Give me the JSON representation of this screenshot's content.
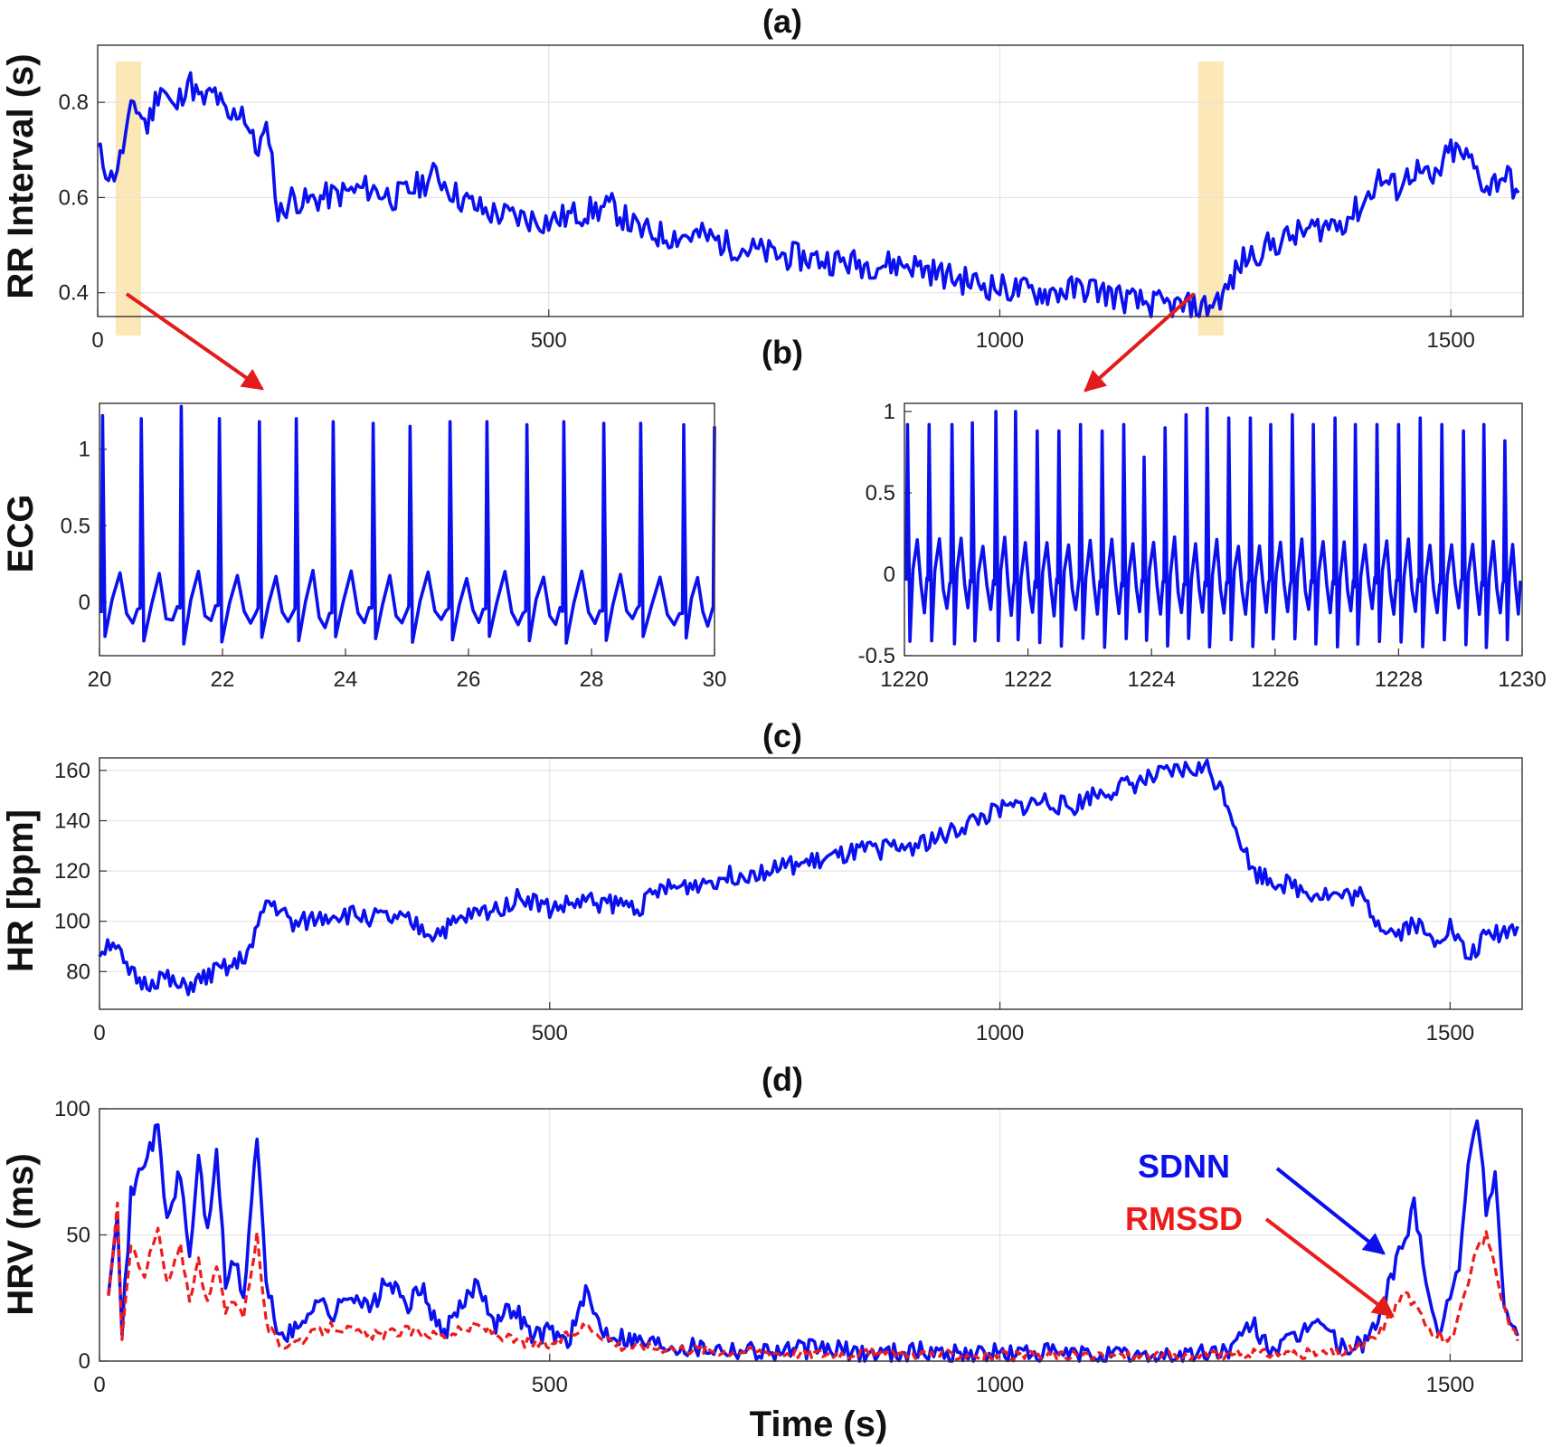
{
  "figure": {
    "panel_titles": [
      "(a)",
      "(b)",
      "(c)",
      "(d)"
    ],
    "xlabel": "Time (s)",
    "colors": {
      "blue": "#0a10ee",
      "red": "#ee1b1b",
      "highlight": "#fce7b6",
      "arrow": "#e31b1b"
    }
  },
  "chart_data": [
    {
      "id": "a",
      "type": "line",
      "title": "(a)",
      "ylabel": "RR Interval (s)",
      "xlabel": "",
      "xlim": [
        0,
        1580
      ],
      "ylim": [
        0.35,
        0.92
      ],
      "xticks": [
        0,
        500,
        1000,
        1500
      ],
      "yticks": [
        0.4,
        0.6,
        0.8
      ],
      "ytick_labels": [
        "0.4",
        "0.6",
        "0.8"
      ],
      "grid": true,
      "highlights": [
        [
          20,
          48
        ],
        [
          1220,
          1248
        ]
      ],
      "series": [
        {
          "color": "#0a10ee",
          "x": [
            0,
            15,
            25,
            40,
            55,
            70,
            85,
            100,
            115,
            130,
            145,
            160,
            175,
            190,
            200,
            215,
            230,
            250,
            275,
            300,
            330,
            360,
            375,
            400,
            430,
            460,
            500,
            540,
            570,
            600,
            630,
            670,
            700,
            750,
            800,
            850,
            900,
            950,
            1000,
            1050,
            1100,
            1150,
            1200,
            1230,
            1250,
            1270,
            1300,
            1340,
            1380,
            1400,
            1420,
            1440,
            1460,
            1480,
            1500,
            1520,
            1540,
            1560,
            1575
          ],
          "y": [
            0.7,
            0.64,
            0.68,
            0.8,
            0.75,
            0.84,
            0.78,
            0.85,
            0.8,
            0.82,
            0.76,
            0.79,
            0.7,
            0.74,
            0.56,
            0.6,
            0.59,
            0.6,
            0.61,
            0.62,
            0.6,
            0.63,
            0.65,
            0.6,
            0.57,
            0.56,
            0.55,
            0.57,
            0.58,
            0.53,
            0.52,
            0.52,
            0.5,
            0.48,
            0.47,
            0.46,
            0.46,
            0.43,
            0.41,
            0.4,
            0.41,
            0.38,
            0.37,
            0.37,
            0.4,
            0.47,
            0.5,
            0.53,
            0.55,
            0.58,
            0.64,
            0.62,
            0.66,
            0.63,
            0.7,
            0.68,
            0.62,
            0.65,
            0.61
          ]
        }
      ]
    },
    {
      "id": "b1",
      "type": "line",
      "title": "(b)",
      "ylabel": "ECG",
      "xlabel": "",
      "xlim": [
        20,
        30
      ],
      "ylim": [
        -0.35,
        1.3
      ],
      "xticks": [
        20,
        22,
        24,
        26,
        28,
        30
      ],
      "yticks": [
        0,
        0.5,
        1
      ],
      "ytick_labels": [
        "0",
        "0.5",
        "1"
      ],
      "grid": false,
      "r_peaks_x": [
        20.05,
        20.68,
        21.33,
        21.95,
        22.6,
        23.2,
        23.8,
        24.45,
        25.05,
        25.7,
        26.3,
        26.95,
        27.55,
        28.2,
        28.8,
        29.5,
        30.0
      ],
      "r_peaks_y": [
        1.22,
        1.2,
        1.28,
        1.2,
        1.18,
        1.2,
        1.18,
        1.17,
        1.15,
        1.18,
        1.18,
        1.16,
        1.18,
        1.17,
        1.17,
        1.16,
        1.15
      ],
      "baseline": 0.0,
      "t_wave": 0.18,
      "s_trough": -0.25,
      "series": [
        {
          "color": "#0a10ee"
        }
      ]
    },
    {
      "id": "b2",
      "type": "line",
      "title": "",
      "ylabel": "",
      "xlabel": "",
      "xlim": [
        1220,
        1230
      ],
      "ylim": [
        -0.5,
        1.05
      ],
      "xticks": [
        1220,
        1222,
        1224,
        1226,
        1228,
        1230
      ],
      "yticks": [
        -0.5,
        0,
        0.5,
        1
      ],
      "ytick_labels": [
        "-0.5",
        "0",
        "0.5",
        "1"
      ],
      "grid": false,
      "r_peaks_x": [
        1220.05,
        1220.4,
        1220.77,
        1221.1,
        1221.48,
        1221.8,
        1222.15,
        1222.5,
        1222.85,
        1223.2,
        1223.55,
        1223.88,
        1224.22,
        1224.56,
        1224.9,
        1225.25,
        1225.6,
        1225.93,
        1226.28,
        1226.62,
        1226.97,
        1227.3,
        1227.65,
        1228.0,
        1228.35,
        1228.7,
        1229.05,
        1229.38,
        1229.72
      ],
      "r_peaks_y": [
        0.92,
        0.92,
        0.92,
        0.93,
        1.0,
        1.0,
        0.88,
        0.88,
        0.92,
        0.88,
        0.92,
        0.72,
        0.9,
        0.98,
        1.02,
        0.96,
        0.96,
        0.92,
        0.98,
        0.92,
        0.96,
        0.92,
        0.92,
        0.92,
        0.96,
        0.92,
        0.88,
        0.92,
        0.82
      ],
      "baseline": 0.0,
      "t_wave": 0.2,
      "s_trough": -0.42,
      "series": [
        {
          "color": "#0a10ee"
        }
      ]
    },
    {
      "id": "c",
      "type": "line",
      "title": "(c)",
      "ylabel": "HR [bpm]",
      "xlabel": "",
      "xlim": [
        0,
        1580
      ],
      "ylim": [
        65,
        165
      ],
      "xticks": [
        0,
        500,
        1000,
        1500
      ],
      "yticks": [
        80,
        100,
        120,
        140,
        160
      ],
      "ytick_labels": [
        "80",
        "100",
        "120",
        "140",
        "160"
      ],
      "grid": true,
      "series": [
        {
          "color": "#0a10ee",
          "x": [
            0,
            15,
            30,
            50,
            70,
            90,
            110,
            130,
            150,
            170,
            185,
            200,
            215,
            230,
            260,
            300,
            340,
            370,
            390,
            410,
            440,
            470,
            500,
            540,
            570,
            600,
            620,
            650,
            700,
            750,
            800,
            850,
            900,
            940,
            970,
            1000,
            1050,
            1080,
            1100,
            1150,
            1200,
            1230,
            1250,
            1280,
            1300,
            1340,
            1380,
            1400,
            1420,
            1440,
            1460,
            1480,
            1500,
            1520,
            1540,
            1560,
            1575
          ],
          "y": [
            88,
            93,
            80,
            75,
            78,
            73,
            76,
            80,
            82,
            90,
            108,
            105,
            98,
            100,
            103,
            102,
            100,
            95,
            98,
            102,
            105,
            110,
            105,
            108,
            107,
            106,
            112,
            114,
            118,
            121,
            124,
            128,
            130,
            134,
            140,
            144,
            148,
            145,
            150,
            155,
            160,
            161,
            150,
            120,
            117,
            112,
            110,
            110,
            100,
            95,
            100,
            92,
            98,
            85,
            94,
            96,
            98
          ]
        }
      ]
    },
    {
      "id": "d",
      "type": "line",
      "title": "(d)",
      "ylabel": "HRV (ms)",
      "xlabel": "Time (s)",
      "xlim": [
        0,
        1580
      ],
      "ylim": [
        0,
        100
      ],
      "xticks": [
        0,
        500,
        1000,
        1500
      ],
      "yticks": [
        0,
        50,
        100
      ],
      "ytick_labels": [
        "0",
        "50",
        "100"
      ],
      "grid": true,
      "annotations": [
        {
          "text": "SDNN",
          "color": "#0a10ee"
        },
        {
          "text": "RMSSD",
          "color": "#ee1b1b"
        }
      ],
      "series": [
        {
          "name": "SDNN",
          "color": "#0a10ee",
          "style": "solid",
          "x": [
            10,
            20,
            25,
            35,
            50,
            65,
            75,
            90,
            100,
            110,
            120,
            130,
            140,
            150,
            160,
            175,
            185,
            200,
            220,
            240,
            260,
            280,
            300,
            320,
            340,
            360,
            380,
            400,
            420,
            440,
            460,
            480,
            500,
            520,
            540,
            560,
            580,
            600,
            650,
            700,
            750,
            800,
            850,
            900,
            950,
            1000,
            1050,
            1100,
            1150,
            1200,
            1230,
            1260,
            1280,
            1300,
            1330,
            1350,
            1380,
            1400,
            1420,
            1440,
            1450,
            1460,
            1470,
            1480,
            1490,
            1500,
            1510,
            1520,
            1530,
            1540,
            1550,
            1560,
            1575
          ],
          "y": [
            30,
            62,
            10,
            65,
            80,
            92,
            55,
            75,
            40,
            82,
            50,
            85,
            30,
            40,
            25,
            90,
            30,
            10,
            12,
            25,
            18,
            28,
            20,
            32,
            22,
            28,
            10,
            20,
            32,
            15,
            22,
            10,
            12,
            8,
            26,
            12,
            10,
            8,
            6,
            5,
            4,
            5,
            3,
            4,
            3,
            3,
            3,
            2,
            2,
            2,
            3,
            5,
            15,
            5,
            8,
            18,
            5,
            6,
            15,
            40,
            48,
            62,
            42,
            20,
            10,
            28,
            40,
            75,
            98,
            60,
            75,
            22,
            10
          ]
        },
        {
          "name": "RMSSD",
          "color": "#ee1b1b",
          "style": "dashed",
          "x": [
            10,
            20,
            25,
            35,
            50,
            65,
            75,
            90,
            100,
            110,
            120,
            130,
            140,
            150,
            160,
            175,
            185,
            200,
            220,
            260,
            300,
            340,
            380,
            420,
            460,
            500,
            540,
            580,
            650,
            700,
            800,
            900,
            1000,
            1100,
            1200,
            1300,
            1380,
            1400,
            1420,
            1440,
            1450,
            1460,
            1480,
            1500,
            1510,
            1520,
            1530,
            1540,
            1550,
            1560,
            1575
          ],
          "y": [
            25,
            62,
            8,
            45,
            35,
            52,
            30,
            45,
            25,
            40,
            22,
            38,
            20,
            25,
            18,
            50,
            15,
            6,
            8,
            14,
            10,
            12,
            10,
            14,
            8,
            6,
            14,
            6,
            5,
            4,
            3,
            3,
            2,
            2,
            2,
            3,
            3,
            6,
            10,
            22,
            28,
            22,
            12,
            8,
            18,
            30,
            45,
            50,
            38,
            20,
            8
          ]
        }
      ]
    }
  ]
}
